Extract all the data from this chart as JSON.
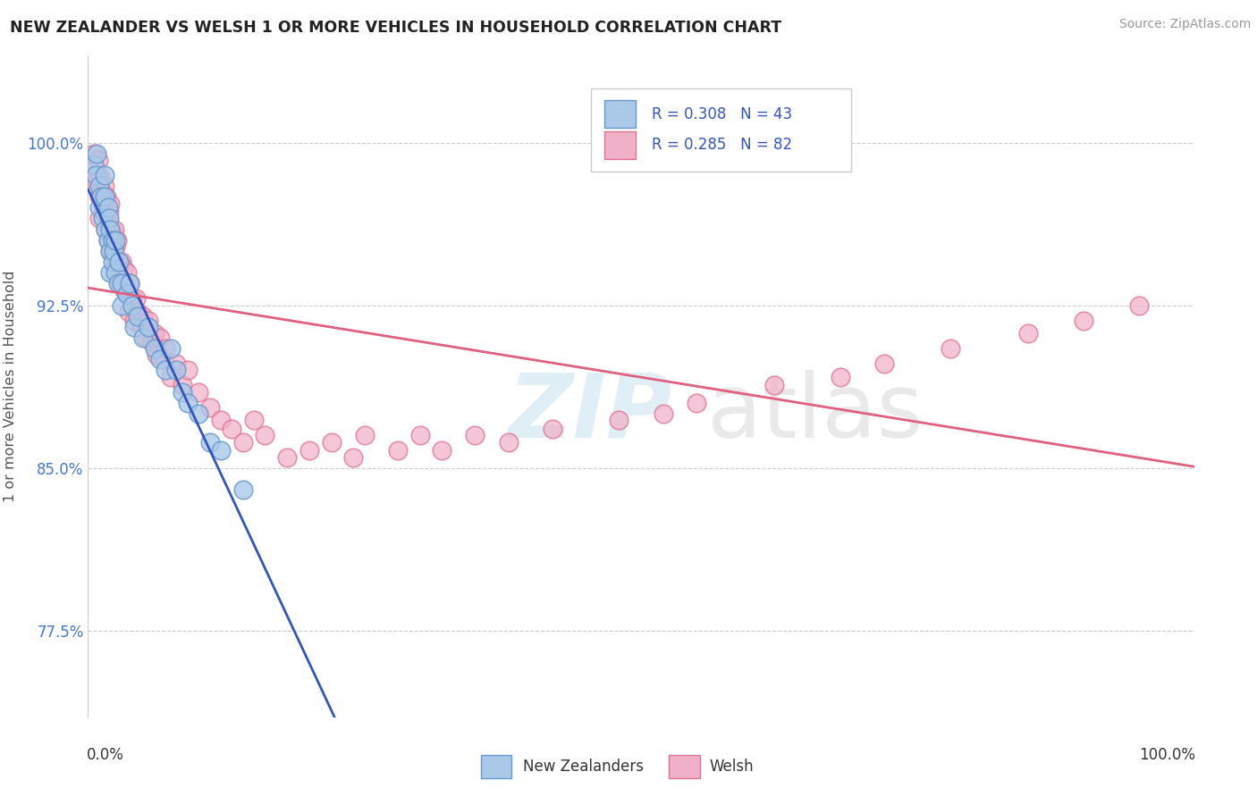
{
  "title": "NEW ZEALANDER VS WELSH 1 OR MORE VEHICLES IN HOUSEHOLD CORRELATION CHART",
  "source": "Source: ZipAtlas.com",
  "ylabel": "1 or more Vehicles in Household",
  "xlim": [
    0.0,
    1.0
  ],
  "ylim": [
    0.735,
    1.04
  ],
  "yticks": [
    0.775,
    0.85,
    0.925,
    1.0
  ],
  "ytick_labels": [
    "77.5%",
    "85.0%",
    "92.5%",
    "100.0%"
  ],
  "nz_color": "#aac8e8",
  "nz_edge_color": "#6699cc",
  "welsh_color": "#f0b0c8",
  "welsh_edge_color": "#e07090",
  "nz_line_color": "#3355bb",
  "welsh_line_color": "#e06080",
  "nz_x": [
    0.005,
    0.007,
    0.008,
    0.01,
    0.01,
    0.012,
    0.013,
    0.015,
    0.015,
    0.016,
    0.018,
    0.018,
    0.019,
    0.02,
    0.02,
    0.02,
    0.022,
    0.022,
    0.023,
    0.025,
    0.025,
    0.027,
    0.028,
    0.03,
    0.03,
    0.035,
    0.038,
    0.04,
    0.042,
    0.045,
    0.05,
    0.055,
    0.06,
    0.065,
    0.07,
    0.075,
    0.08,
    0.085,
    0.09,
    0.1,
    0.11,
    0.12,
    0.14
  ],
  "nz_y": [
    0.99,
    0.985,
    0.995,
    0.98,
    0.97,
    0.975,
    0.965,
    0.985,
    0.975,
    0.96,
    0.97,
    0.955,
    0.965,
    0.96,
    0.95,
    0.94,
    0.955,
    0.945,
    0.95,
    0.955,
    0.94,
    0.935,
    0.945,
    0.935,
    0.925,
    0.93,
    0.935,
    0.925,
    0.915,
    0.92,
    0.91,
    0.915,
    0.905,
    0.9,
    0.895,
    0.905,
    0.895,
    0.885,
    0.88,
    0.875,
    0.862,
    0.858,
    0.84
  ],
  "welsh_x": [
    0.005,
    0.007,
    0.008,
    0.009,
    0.01,
    0.01,
    0.01,
    0.012,
    0.013,
    0.014,
    0.015,
    0.015,
    0.016,
    0.017,
    0.018,
    0.018,
    0.019,
    0.02,
    0.02,
    0.02,
    0.022,
    0.022,
    0.024,
    0.025,
    0.025,
    0.026,
    0.028,
    0.028,
    0.03,
    0.03,
    0.032,
    0.033,
    0.035,
    0.035,
    0.037,
    0.038,
    0.04,
    0.042,
    0.043,
    0.045,
    0.048,
    0.05,
    0.052,
    0.055,
    0.058,
    0.06,
    0.062,
    0.065,
    0.068,
    0.07,
    0.075,
    0.08,
    0.085,
    0.09,
    0.1,
    0.11,
    0.12,
    0.13,
    0.14,
    0.15,
    0.16,
    0.18,
    0.2,
    0.22,
    0.24,
    0.25,
    0.28,
    0.3,
    0.32,
    0.35,
    0.38,
    0.42,
    0.48,
    0.52,
    0.55,
    0.62,
    0.68,
    0.72,
    0.78,
    0.85,
    0.9,
    0.95
  ],
  "welsh_y": [
    0.995,
    0.988,
    0.982,
    0.992,
    0.985,
    0.975,
    0.965,
    0.978,
    0.972,
    0.968,
    0.98,
    0.97,
    0.96,
    0.975,
    0.965,
    0.955,
    0.968,
    0.972,
    0.962,
    0.95,
    0.958,
    0.948,
    0.96,
    0.952,
    0.942,
    0.955,
    0.945,
    0.935,
    0.945,
    0.935,
    0.942,
    0.932,
    0.94,
    0.93,
    0.922,
    0.935,
    0.928,
    0.918,
    0.928,
    0.922,
    0.915,
    0.92,
    0.91,
    0.918,
    0.908,
    0.912,
    0.902,
    0.91,
    0.9,
    0.905,
    0.892,
    0.898,
    0.888,
    0.895,
    0.885,
    0.878,
    0.872,
    0.868,
    0.862,
    0.872,
    0.865,
    0.855,
    0.858,
    0.862,
    0.855,
    0.865,
    0.858,
    0.865,
    0.858,
    0.865,
    0.862,
    0.868,
    0.872,
    0.875,
    0.88,
    0.888,
    0.892,
    0.898,
    0.905,
    0.912,
    0.918,
    0.925
  ]
}
